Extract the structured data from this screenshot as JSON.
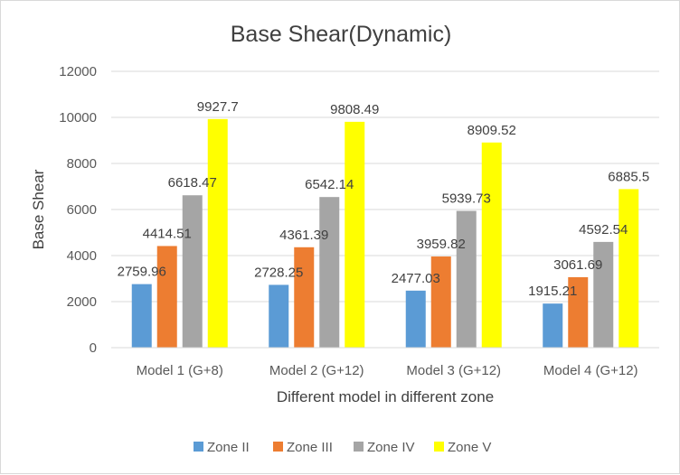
{
  "chart_data": {
    "type": "bar",
    "title": "Base Shear(Dynamic)",
    "xlabel": "Different model in different zone",
    "ylabel": "Base Shear",
    "ylim": [
      0,
      12000
    ],
    "yticks": [
      "0",
      "2000",
      "4000",
      "6000",
      "8000",
      "10000",
      "12000"
    ],
    "categories": [
      "Model 1 (G+8)",
      "Model 2 (G+12)",
      "Model 3 (G+12)",
      "Model 4 (G+12)"
    ],
    "series": [
      {
        "name": "Zone II",
        "color": "#5b9bd5",
        "values": [
          2759.96,
          2728.25,
          2477.03,
          1915.21
        ],
        "labels": [
          "2759.96",
          "2728.25",
          "2477.03",
          "1915.21"
        ]
      },
      {
        "name": "Zone III",
        "color": "#ed7d31",
        "values": [
          4414.51,
          4361.39,
          3959.82,
          3061.69
        ],
        "labels": [
          "4414.51",
          "4361.39",
          "3959.82",
          "3061.69"
        ]
      },
      {
        "name": "Zone IV",
        "color": "#a5a5a5",
        "values": [
          6618.47,
          6542.14,
          5939.73,
          4592.54
        ],
        "labels": [
          "6618.47",
          "6542.14",
          "5939.73",
          "4592.54"
        ]
      },
      {
        "name": "Zone V",
        "color": "#ffff00",
        "values": [
          9927.7,
          9808.49,
          8909.52,
          6885.5
        ],
        "labels": [
          "9927.7",
          "9808.49",
          "8909.52",
          "6885.5"
        ]
      }
    ],
    "grid": true,
    "legend_position": "bottom"
  }
}
